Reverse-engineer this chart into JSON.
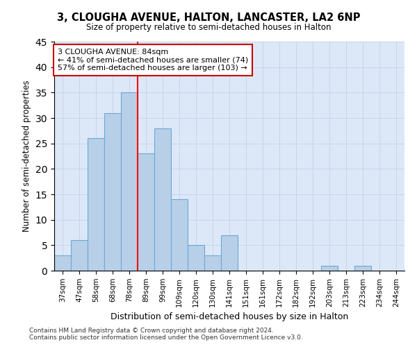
{
  "title1": "3, CLOUGHA AVENUE, HALTON, LANCASTER, LA2 6NP",
  "title2": "Size of property relative to semi-detached houses in Halton",
  "xlabel": "Distribution of semi-detached houses by size in Halton",
  "ylabel": "Number of semi-detached properties",
  "categories": [
    "37sqm",
    "47sqm",
    "58sqm",
    "68sqm",
    "78sqm",
    "89sqm",
    "99sqm",
    "109sqm",
    "120sqm",
    "130sqm",
    "141sqm",
    "151sqm",
    "161sqm",
    "172sqm",
    "182sqm",
    "192sqm",
    "203sqm",
    "213sqm",
    "223sqm",
    "234sqm",
    "244sqm"
  ],
  "values": [
    3,
    6,
    26,
    31,
    35,
    23,
    28,
    14,
    5,
    3,
    7,
    0,
    0,
    0,
    0,
    0,
    1,
    0,
    1,
    0,
    0
  ],
  "bar_color": "#b8cfe8",
  "bar_edgecolor": "#6aaad4",
  "red_line_index": 5,
  "red_line_label": "3 CLOUGHA AVENUE: 84sqm",
  "annotation_smaller": "← 41% of semi-detached houses are smaller (74)",
  "annotation_larger": "57% of semi-detached houses are larger (103) →",
  "annotation_box_color": "#ffffff",
  "annotation_box_edgecolor": "#cc0000",
  "ylim": [
    0,
    45
  ],
  "yticks": [
    0,
    5,
    10,
    15,
    20,
    25,
    30,
    35,
    40,
    45
  ],
  "footnote1": "Contains HM Land Registry data © Crown copyright and database right 2024.",
  "footnote2": "Contains public sector information licensed under the Open Government Licence v3.0.",
  "grid_color": "#c8d4e8",
  "bg_color": "#dce8f8"
}
